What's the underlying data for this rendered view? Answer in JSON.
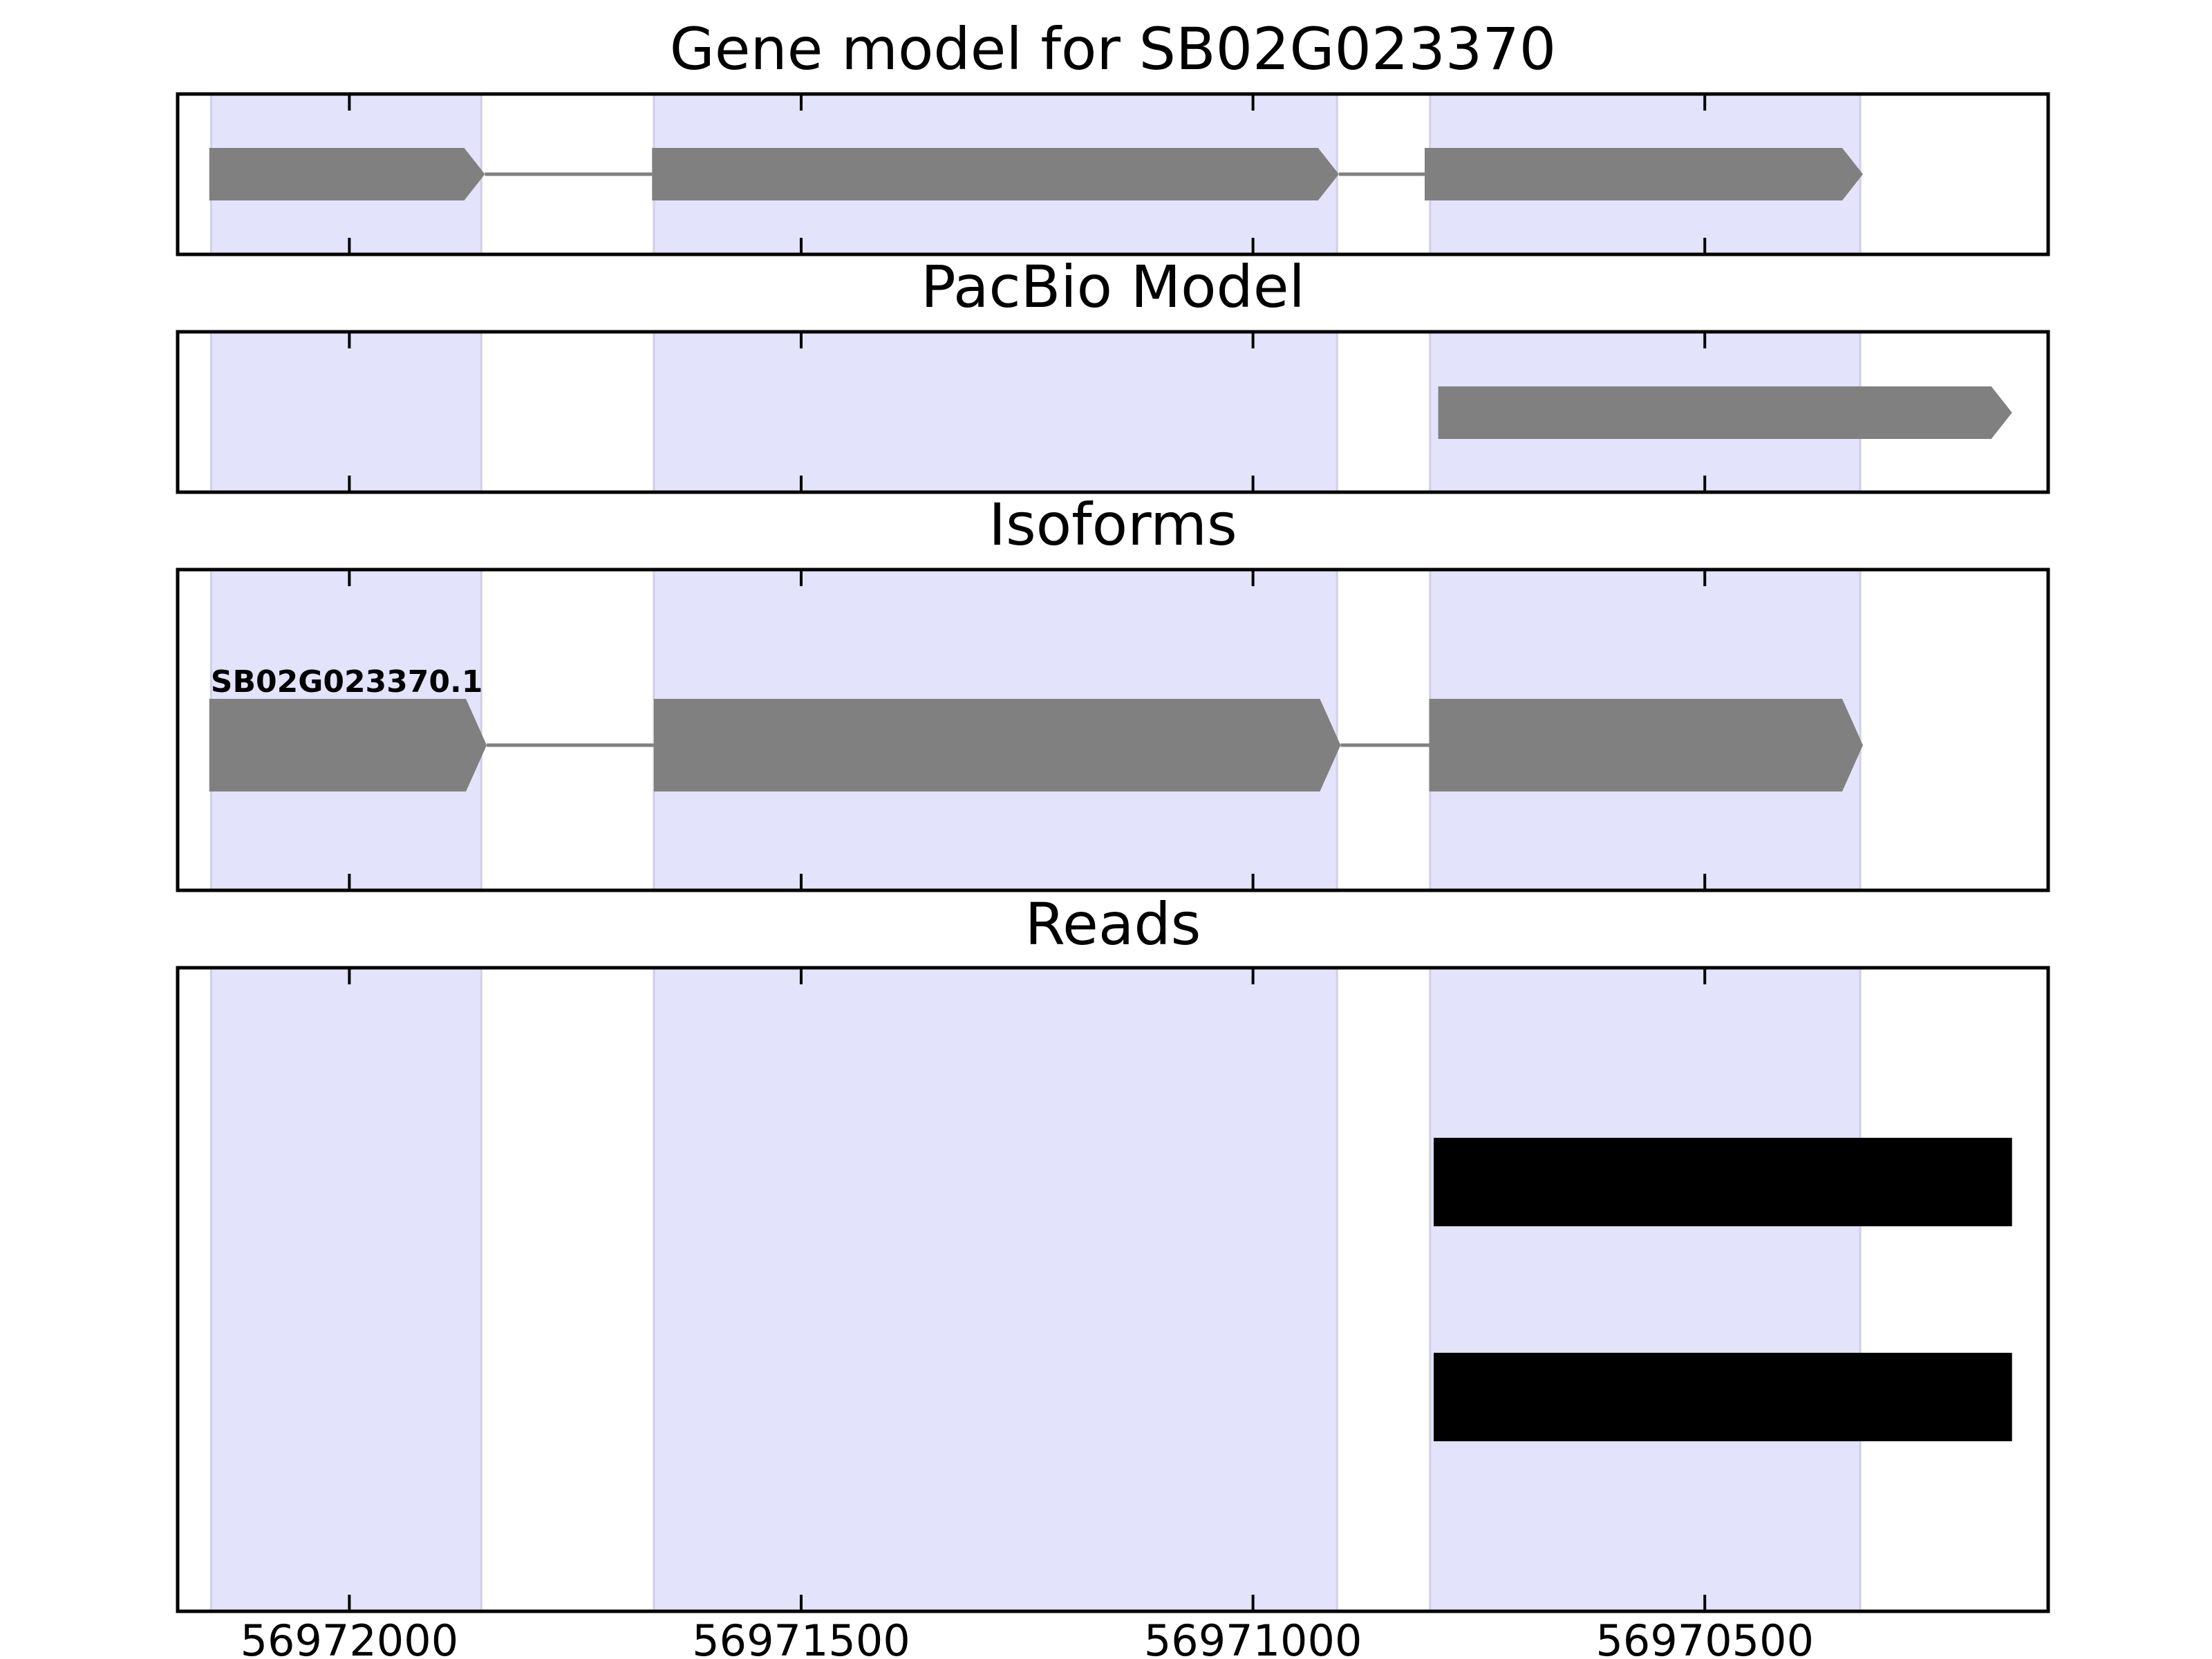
{
  "chart_data": {
    "type": "gene-track",
    "x_axis": {
      "reversed": true,
      "xlim": [
        56972190,
        56970120
      ],
      "ticks": [
        56972000,
        56971500,
        56971000,
        56970500
      ],
      "tick_labels": [
        "56972000",
        "56971500",
        "56971000",
        "56970500"
      ]
    },
    "exon_regions": [
      [
        56972153,
        56971854
      ],
      [
        56971663,
        56970907
      ],
      [
        56970804,
        56970328
      ]
    ],
    "colors": {
      "exon_shade": "#e3e3fc",
      "exon_shade_edge": "#cfcfe8",
      "feature": "#808080",
      "read": "#000000",
      "frame": "#000000"
    },
    "panels": [
      {
        "title": "Gene model for SB02G023370",
        "features": [
          {
            "label": "",
            "exons": [
              [
                56972155,
                56971850
              ],
              [
                56971665,
                56970905
              ],
              [
                56970810,
                56970325
              ]
            ]
          }
        ]
      },
      {
        "title": "PacBio Model",
        "features": [
          {
            "label": "",
            "exons": [
              [
                56970795,
                56970160
              ]
            ]
          }
        ]
      },
      {
        "title": "Isoforms",
        "features": [
          {
            "label": "SB02G023370.1",
            "exons": [
              [
                56972155,
                56971848
              ],
              [
                56971663,
                56970903
              ],
              [
                56970805,
                56970325
              ]
            ]
          }
        ]
      },
      {
        "title": "Reads",
        "reads": [
          [
            56970800,
            56970160
          ],
          [
            56970800,
            56970160
          ]
        ]
      }
    ]
  }
}
